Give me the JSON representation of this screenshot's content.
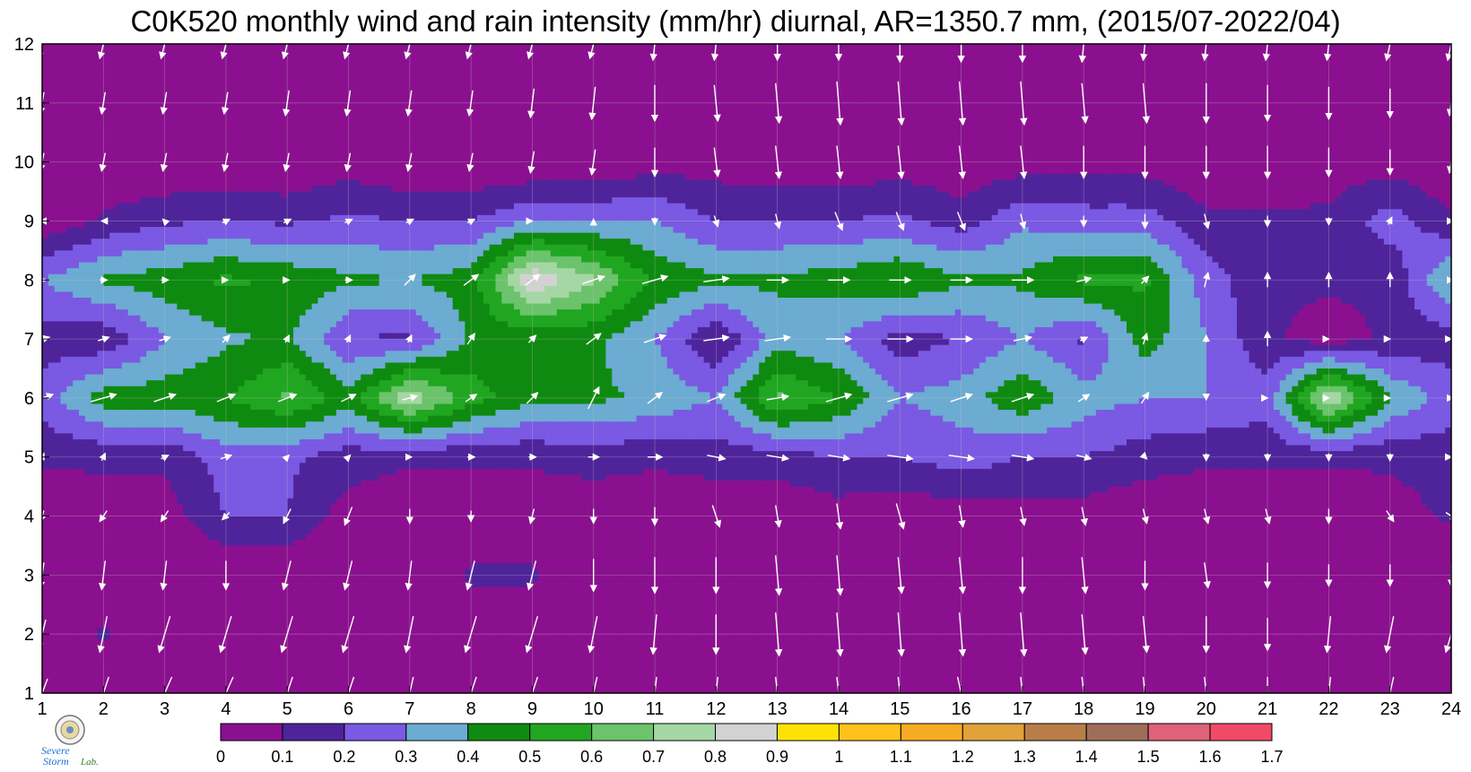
{
  "chart_data": {
    "type": "heatmap",
    "title": "C0K520 monthly wind and rain intensity (mm/hr) diurnal, AR=1350.7 mm, (2015/07-2022/04)",
    "xlabel": "",
    "ylabel": "",
    "xlim": [
      1,
      24
    ],
    "ylim": [
      1,
      12
    ],
    "x_ticks": [
      1,
      2,
      3,
      4,
      5,
      6,
      7,
      8,
      9,
      10,
      11,
      12,
      13,
      14,
      15,
      16,
      17,
      18,
      19,
      20,
      21,
      22,
      23,
      24
    ],
    "y_ticks": [
      1,
      2,
      3,
      4,
      5,
      6,
      7,
      8,
      9,
      10,
      11,
      12
    ],
    "grid": true,
    "rain_intensity_by_month": [
      [
        0,
        0,
        0,
        0,
        0,
        0,
        0,
        0,
        0,
        0.05,
        0,
        0,
        0,
        0,
        0,
        0,
        0,
        0,
        0,
        0,
        0,
        0,
        0,
        0
      ],
      [
        0,
        0.12,
        0,
        0,
        0,
        0,
        0,
        0,
        0,
        0,
        0,
        0,
        0,
        0,
        0,
        0,
        0,
        0,
        0,
        0,
        0,
        0,
        0,
        0
      ],
      [
        0,
        0,
        0,
        0,
        0,
        0,
        0,
        0.12,
        0.12,
        0,
        0,
        0.05,
        0,
        0,
        0,
        0,
        0,
        0,
        0.05,
        0,
        0,
        0,
        0,
        0
      ],
      [
        0.02,
        0.05,
        0.05,
        0.2,
        0.2,
        0.05,
        0.02,
        0.02,
        0.02,
        0.02,
        0.02,
        0.02,
        0.02,
        0.05,
        0.02,
        0.05,
        0.05,
        0.05,
        0.02,
        0.02,
        0.02,
        0.02,
        0.05,
        0.12
      ],
      [
        0.12,
        0.12,
        0.12,
        0.25,
        0.22,
        0.15,
        0.12,
        0.12,
        0.12,
        0.15,
        0.12,
        0.15,
        0.15,
        0.2,
        0.2,
        0.25,
        0.2,
        0.2,
        0.15,
        0.12,
        0.12,
        0.12,
        0.12,
        0.15
      ],
      [
        0.25,
        0.45,
        0.45,
        0.5,
        0.62,
        0.45,
        0.78,
        0.55,
        0.42,
        0.42,
        0.38,
        0.3,
        0.62,
        0.5,
        0.3,
        0.35,
        0.48,
        0.35,
        0.3,
        0.3,
        0.25,
        0.8,
        0.4,
        0.25
      ],
      [
        0.15,
        0.12,
        0.3,
        0.38,
        0.42,
        0.2,
        0.18,
        0.42,
        0.42,
        0.42,
        0.3,
        0.1,
        0.35,
        0.3,
        0.15,
        0.2,
        0.3,
        0.18,
        0.45,
        0.3,
        0.12,
        0.05,
        0.12,
        0.15
      ],
      [
        0.3,
        0.42,
        0.45,
        0.52,
        0.48,
        0.42,
        0.4,
        0.45,
        0.9,
        0.72,
        0.48,
        0.42,
        0.42,
        0.45,
        0.5,
        0.42,
        0.42,
        0.52,
        0.52,
        0.25,
        0.12,
        0.12,
        0.12,
        0.42
      ],
      [
        0.02,
        0.12,
        0.18,
        0.2,
        0.18,
        0.22,
        0.2,
        0.2,
        0.3,
        0.3,
        0.3,
        0.2,
        0.2,
        0.2,
        0.22,
        0.15,
        0.28,
        0.25,
        0.25,
        0.12,
        0.12,
        0.12,
        0.25,
        0.12
      ],
      [
        0,
        0,
        0,
        0,
        0,
        0.05,
        0,
        0,
        0,
        0,
        0.05,
        0.05,
        0.02,
        0.02,
        0.05,
        0.02,
        0.05,
        0.05,
        0.05,
        0.02,
        0.02,
        0.05,
        0.05,
        0
      ],
      [
        0,
        0,
        0,
        0,
        0,
        0,
        0,
        0,
        0,
        0,
        0,
        0,
        0,
        0,
        0,
        0,
        0,
        0,
        0,
        0,
        0,
        0,
        0,
        0
      ],
      [
        0,
        0,
        0,
        0,
        0,
        0,
        0,
        0,
        0,
        0,
        0,
        0,
        0,
        0,
        0,
        0,
        0,
        0,
        0,
        0,
        0,
        0,
        0,
        0
      ]
    ],
    "contour_levels": [
      0,
      0.1,
      0.2,
      0.3,
      0.4,
      0.5,
      0.6,
      0.7,
      0.8,
      0.9,
      1,
      1.1,
      1.2,
      1.3,
      1.4,
      1.5,
      1.6,
      1.7
    ],
    "colorbar_labels": [
      "0",
      "0.1",
      "0.2",
      "0.3",
      "0.4",
      "0.5",
      "0.6",
      "0.7",
      "0.8",
      "0.9",
      "1",
      "1.1",
      "1.2",
      "1.3",
      "1.4",
      "1.5",
      "1.6",
      "1.7"
    ],
    "colorbar_colors": [
      "#8b108f",
      "#4f249b",
      "#7a59e3",
      "#6cabd2",
      "#0f8a10",
      "#21a621",
      "#6bc36b",
      "#a4d7a4",
      "#d2d2d2",
      "#ffe205",
      "#ffc21a",
      "#f5ab24",
      "#e0a23a",
      "#b97e48",
      "#9f6e5a",
      "#de6279",
      "#f04a68",
      "#d82a48"
    ],
    "contour_line_color": "#f0a820",
    "wind_arrow_color": "#ffffff",
    "wind_vectors": {
      "note_units": "arrow components u (east), v (north) in relative units",
      "u": [
        [
          -0.15,
          -0.15,
          -0.2,
          -0.2,
          -0.15,
          -0.15,
          -0.1,
          -0.15,
          -0.15,
          -0.1,
          -0.05,
          -0.05,
          0.05,
          0.05,
          0.05,
          0.1,
          0.05,
          0.05,
          0.05,
          0.05,
          0.0,
          -0.05,
          -0.1,
          -0.15
        ],
        [
          -0.1,
          -0.1,
          -0.15,
          -0.15,
          -0.15,
          -0.15,
          -0.1,
          -0.15,
          -0.15,
          -0.1,
          -0.05,
          0.0,
          0.05,
          0.05,
          0.05,
          0.05,
          0.05,
          0.05,
          0.05,
          0.0,
          0.0,
          -0.05,
          -0.1,
          -0.15
        ],
        [
          -0.05,
          -0.05,
          -0.05,
          0.0,
          -0.1,
          -0.1,
          -0.05,
          -0.1,
          -0.1,
          0.0,
          0.0,
          0.0,
          0.05,
          0.05,
          0.05,
          0.05,
          0.0,
          0.05,
          0.0,
          0.05,
          0.0,
          0.0,
          0.0,
          0.0
        ],
        [
          -0.05,
          -0.1,
          -0.1,
          -0.1,
          -0.1,
          -0.1,
          0.0,
          0.0,
          -0.05,
          0.0,
          0.0,
          0.1,
          0.05,
          0.05,
          0.1,
          0.05,
          0.05,
          0.05,
          0.05,
          0.05,
          0.05,
          0.0,
          0.1,
          0.15
        ],
        [
          0.05,
          0.05,
          0.1,
          0.15,
          0.05,
          0.05,
          0.05,
          0.1,
          0.1,
          0.15,
          0.2,
          0.25,
          0.3,
          0.3,
          0.35,
          0.35,
          0.3,
          0.2,
          0.05,
          0.0,
          0.0,
          0.0,
          0.0,
          0.0
        ],
        [
          0.3,
          0.35,
          0.3,
          0.25,
          0.25,
          0.2,
          0.2,
          0.15,
          0.15,
          0.15,
          0.2,
          0.25,
          0.3,
          0.35,
          0.35,
          0.3,
          0.3,
          0.15,
          0.1,
          0.0,
          0.0,
          0.0,
          0.0,
          0.05
        ],
        [
          0.2,
          0.15,
          0.15,
          0.1,
          0.05,
          0.05,
          0.05,
          0.1,
          0.1,
          0.2,
          0.3,
          0.35,
          0.35,
          0.35,
          0.35,
          0.3,
          0.25,
          0.1,
          0.05,
          0.0,
          0.0,
          0.0,
          0.0,
          0.0
        ],
        [
          0.1,
          0.1,
          0.1,
          0.05,
          0.05,
          0.1,
          0.15,
          0.2,
          0.2,
          0.3,
          0.35,
          0.35,
          0.3,
          0.3,
          0.3,
          0.3,
          0.3,
          0.2,
          0.1,
          0.05,
          0.0,
          0.0,
          0.0,
          0.05
        ],
        [
          -0.05,
          -0.05,
          -0.05,
          0.1,
          0.1,
          0.1,
          0.1,
          0.1,
          0.0,
          0.0,
          0.0,
          0.05,
          0.05,
          0.1,
          0.1,
          0.1,
          0.05,
          0.0,
          0.0,
          0.05,
          0.0,
          0.0,
          0.05,
          0.05
        ],
        [
          -0.05,
          -0.05,
          -0.05,
          -0.05,
          -0.05,
          -0.05,
          -0.05,
          -0.05,
          -0.05,
          -0.05,
          0.0,
          0.05,
          0.05,
          0.05,
          0.05,
          0.05,
          0.05,
          0.0,
          0.0,
          0.0,
          0.0,
          0.0,
          0.0,
          -0.05
        ],
        [
          -0.05,
          -0.05,
          -0.05,
          -0.05,
          -0.05,
          -0.05,
          -0.05,
          -0.05,
          -0.05,
          -0.05,
          0.0,
          0.05,
          0.05,
          0.05,
          0.05,
          0.05,
          0.05,
          0.05,
          0.05,
          0.0,
          0.0,
          0.0,
          0.0,
          -0.05
        ],
        [
          -0.1,
          -0.1,
          -0.1,
          -0.1,
          -0.1,
          -0.1,
          -0.1,
          -0.1,
          -0.1,
          -0.1,
          -0.05,
          -0.05,
          0.0,
          0.0,
          0.0,
          0.0,
          0.0,
          -0.05,
          -0.05,
          -0.05,
          -0.05,
          -0.05,
          -0.1,
          -0.1
        ]
      ],
      "v": [
        [
          -0.4,
          -0.45,
          -0.45,
          -0.45,
          -0.45,
          -0.45,
          -0.45,
          -0.45,
          -0.45,
          -0.45,
          -0.45,
          -0.45,
          -0.45,
          -0.45,
          -0.45,
          -0.45,
          -0.45,
          -0.45,
          -0.45,
          -0.45,
          -0.45,
          -0.45,
          -0.45,
          -0.45
        ],
        [
          -0.4,
          -0.5,
          -0.5,
          -0.5,
          -0.5,
          -0.5,
          -0.5,
          -0.5,
          -0.5,
          -0.5,
          -0.55,
          -0.55,
          -0.6,
          -0.6,
          -0.6,
          -0.6,
          -0.6,
          -0.55,
          -0.5,
          -0.5,
          -0.45,
          -0.5,
          -0.5,
          -0.5
        ],
        [
          -0.35,
          -0.4,
          -0.4,
          -0.4,
          -0.4,
          -0.4,
          -0.4,
          -0.4,
          -0.4,
          -0.45,
          -0.5,
          -0.5,
          -0.55,
          -0.55,
          -0.5,
          -0.5,
          -0.5,
          -0.5,
          -0.4,
          -0.35,
          -0.35,
          -0.3,
          -0.3,
          -0.3
        ],
        [
          -0.15,
          -0.15,
          -0.15,
          -0.1,
          -0.2,
          -0.25,
          -0.2,
          -0.15,
          -0.2,
          -0.2,
          -0.25,
          -0.3,
          -0.3,
          -0.35,
          -0.35,
          -0.3,
          -0.25,
          -0.25,
          -0.2,
          -0.2,
          -0.2,
          -0.2,
          -0.15,
          -0.1
        ],
        [
          0.1,
          0.1,
          0.05,
          0.05,
          0.05,
          0.05,
          0.0,
          0.0,
          0.0,
          0.0,
          0.0,
          -0.05,
          -0.05,
          -0.05,
          -0.05,
          -0.05,
          -0.05,
          -0.05,
          -0.05,
          -0.1,
          -0.1,
          -0.1,
          -0.1,
          0.0
        ],
        [
          0.1,
          0.1,
          0.1,
          0.1,
          0.1,
          0.1,
          0.05,
          0.1,
          0.15,
          0.3,
          0.15,
          0.1,
          0.05,
          0.1,
          0.1,
          0.1,
          0.1,
          0.1,
          0.15,
          -0.05,
          0.0,
          0.0,
          0.0,
          0.0
        ],
        [
          0.05,
          0.05,
          0.05,
          0.1,
          0.1,
          0.1,
          0.1,
          0.15,
          0.1,
          0.15,
          0.1,
          0.05,
          0.05,
          0.0,
          0.0,
          0.0,
          0.05,
          0.05,
          0.15,
          0.1,
          0.2,
          0.0,
          0.0,
          0.0
        ],
        [
          0.0,
          0.0,
          0.0,
          0.0,
          0.0,
          0.0,
          0.15,
          0.15,
          0.15,
          0.1,
          0.1,
          0.05,
          0.0,
          0.0,
          0.0,
          0.0,
          0.0,
          0.05,
          0.1,
          0.2,
          0.2,
          0.2,
          0.2,
          0.0
        ],
        [
          0.0,
          0.0,
          0.05,
          0.05,
          0.05,
          0.05,
          0.05,
          0.05,
          0.0,
          0.05,
          -0.1,
          -0.15,
          -0.2,
          -0.25,
          -0.25,
          -0.25,
          -0.2,
          -0.15,
          -0.2,
          -0.2,
          -0.15,
          -0.1,
          0.1,
          0.0
        ],
        [
          -0.25,
          -0.25,
          -0.25,
          -0.25,
          -0.25,
          -0.25,
          -0.25,
          -0.25,
          -0.3,
          -0.35,
          -0.4,
          -0.4,
          -0.45,
          -0.45,
          -0.45,
          -0.45,
          -0.45,
          -0.45,
          -0.45,
          -0.45,
          -0.45,
          -0.4,
          -0.35,
          -0.3
        ],
        [
          -0.3,
          -0.3,
          -0.3,
          -0.3,
          -0.35,
          -0.35,
          -0.35,
          -0.35,
          -0.4,
          -0.45,
          -0.5,
          -0.5,
          -0.55,
          -0.6,
          -0.6,
          -0.6,
          -0.6,
          -0.55,
          -0.55,
          -0.55,
          -0.5,
          -0.45,
          -0.4,
          -0.35
        ],
        [
          -0.4,
          -0.4,
          -0.4,
          -0.4,
          -0.4,
          -0.4,
          -0.4,
          -0.4,
          -0.4,
          -0.4,
          -0.45,
          -0.45,
          -0.45,
          -0.45,
          -0.5,
          -0.5,
          -0.5,
          -0.5,
          -0.45,
          -0.45,
          -0.45,
          -0.45,
          -0.45,
          -0.45
        ]
      ]
    }
  },
  "logo": {
    "text_line1": "Severe",
    "text_line2": "Storm",
    "text_lab": "Lab."
  }
}
